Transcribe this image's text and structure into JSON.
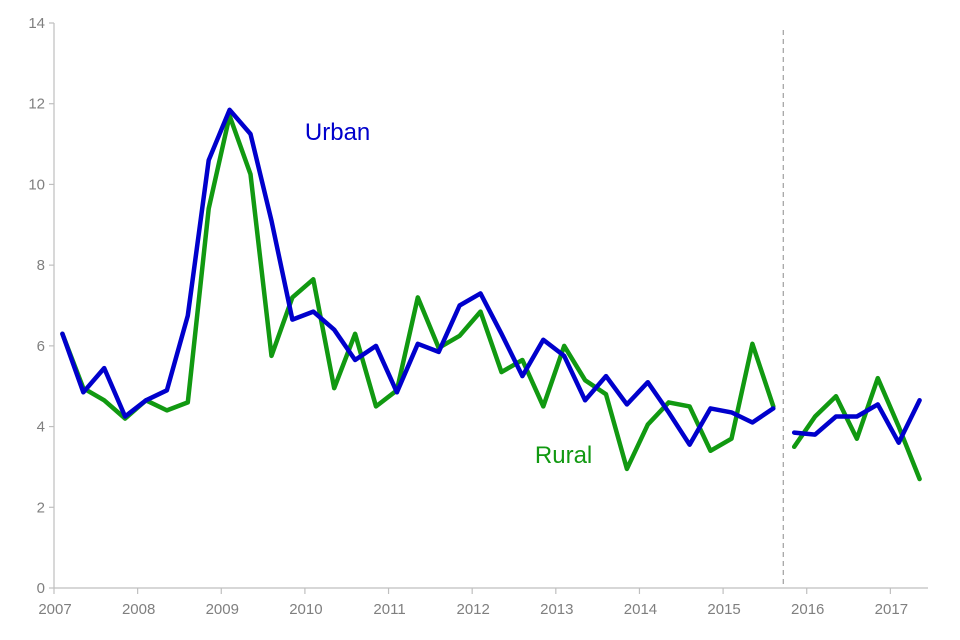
{
  "chart_data": {
    "type": "line",
    "title": "",
    "xlabel": "",
    "ylabel": "",
    "ylim": [
      0,
      14
    ],
    "yticks": [
      0,
      2,
      4,
      6,
      8,
      10,
      12,
      14
    ],
    "xlim": [
      2007,
      2017.45
    ],
    "xticks": [
      2007,
      2008,
      2009,
      2010,
      2011,
      2012,
      2013,
      2014,
      2015,
      2016,
      2017
    ],
    "xtick_labels": [
      "2007",
      "2008",
      "2009",
      "2010",
      "2011",
      "2012",
      "2013",
      "2014",
      "2015",
      "2016",
      "2017"
    ],
    "grid": false,
    "break_at": 2015.72,
    "series": [
      {
        "name": "Urban",
        "color": "#0000cc",
        "segments": [
          {
            "x": [
              2007.1,
              2007.35,
              2007.6,
              2007.85,
              2008.1,
              2008.35,
              2008.6,
              2008.85,
              2009.1,
              2009.35,
              2009.6,
              2009.85,
              2010.1,
              2010.35,
              2010.6,
              2010.85,
              2011.1,
              2011.35,
              2011.6,
              2011.85,
              2012.1,
              2012.35,
              2012.6,
              2012.85,
              2013.1,
              2013.35,
              2013.6,
              2013.85,
              2014.1,
              2014.35,
              2014.6,
              2014.85,
              2015.1,
              2015.35,
              2015.6
            ],
            "y": [
              6.3,
              4.85,
              5.45,
              4.25,
              4.65,
              4.9,
              6.75,
              10.6,
              11.85,
              11.25,
              9.1,
              6.65,
              6.85,
              6.4,
              5.65,
              6.0,
              4.85,
              6.05,
              5.85,
              7.0,
              7.3,
              6.3,
              5.25,
              6.15,
              5.75,
              4.65,
              5.25,
              4.55,
              5.1,
              4.35,
              3.55,
              4.45,
              4.35,
              4.1,
              4.45
            ]
          },
          {
            "x": [
              2015.85,
              2016.1,
              2016.35,
              2016.6,
              2016.85,
              2017.1,
              2017.35
            ],
            "y": [
              3.85,
              3.8,
              4.25,
              4.25,
              4.55,
              3.6,
              4.65
            ]
          }
        ]
      },
      {
        "name": "Rural",
        "color": "#119911",
        "segments": [
          {
            "x": [
              2007.1,
              2007.35,
              2007.6,
              2007.85,
              2008.1,
              2008.35,
              2008.6,
              2008.85,
              2009.1,
              2009.35,
              2009.6,
              2009.85,
              2010.1,
              2010.35,
              2010.6,
              2010.85,
              2011.1,
              2011.35,
              2011.6,
              2011.85,
              2012.1,
              2012.35,
              2012.6,
              2012.85,
              2013.1,
              2013.35,
              2013.6,
              2013.85,
              2014.1,
              2014.35,
              2014.6,
              2014.85,
              2015.1,
              2015.35,
              2015.6
            ],
            "y": [
              6.3,
              4.95,
              4.65,
              4.2,
              4.65,
              4.4,
              4.6,
              9.4,
              11.7,
              10.25,
              5.75,
              7.2,
              7.65,
              4.95,
              6.3,
              4.5,
              4.9,
              7.2,
              5.95,
              6.25,
              6.85,
              5.35,
              5.65,
              4.5,
              6.0,
              5.15,
              4.8,
              2.95,
              4.05,
              4.6,
              4.5,
              3.4,
              3.7,
              6.05,
              4.5
            ]
          },
          {
            "x": [
              2015.85,
              2016.1,
              2016.35,
              2016.6,
              2016.85,
              2017.1,
              2017.35
            ],
            "y": [
              3.5,
              4.25,
              4.75,
              3.7,
              5.2,
              4.0,
              2.7
            ]
          }
        ]
      }
    ],
    "annotations": [
      {
        "text": "Urban",
        "color": "#0000cc",
        "x": 2010.0,
        "y": 11.1
      },
      {
        "text": "Rural",
        "color": "#119911",
        "x": 2012.75,
        "y": 3.1
      }
    ]
  }
}
